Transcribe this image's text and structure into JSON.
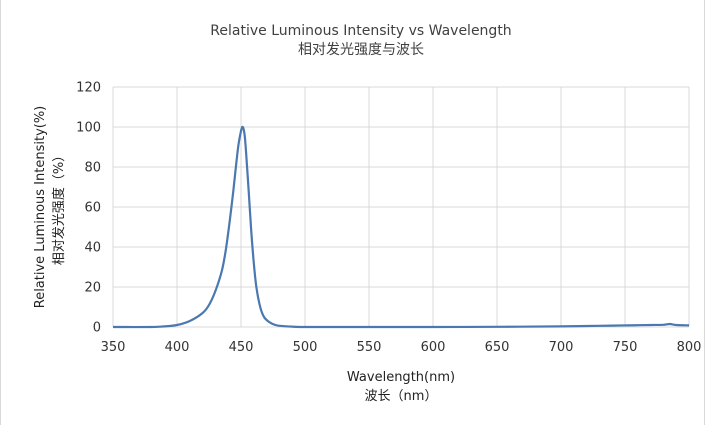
{
  "chart_data": {
    "type": "line",
    "title": "Relative Luminous Intensity vs Wavelength",
    "subtitle": "相对发光强度与波长",
    "xlabel": "Wavelength(nm)",
    "xlabel_cn": "波长（nm）",
    "ylabel": "Relative Luminous Intensity(%)",
    "ylabel_cn": "相对发光强度（%）",
    "xlim": [
      350,
      800
    ],
    "ylim": [
      0,
      120
    ],
    "xticks": [
      350,
      400,
      450,
      500,
      550,
      600,
      650,
      700,
      750,
      800
    ],
    "yticks": [
      0,
      20,
      40,
      60,
      80,
      100,
      120
    ],
    "grid": true,
    "line_color": "#4a78b0",
    "series": [
      {
        "x": [
          350,
          380,
          390,
          400,
          410,
          420,
          425,
          430,
          435,
          438,
          441,
          444,
          446,
          448,
          450,
          451,
          452,
          453,
          454,
          456,
          458,
          460,
          462,
          465,
          468,
          472,
          476,
          480,
          490,
          500,
          550,
          600,
          650,
          700,
          720,
          740,
          760,
          770,
          780,
          785,
          790,
          800
        ],
        "y": [
          0,
          0,
          0.3,
          1,
          3,
          7,
          11,
          18,
          28,
          38,
          52,
          68,
          80,
          91,
          98,
          100,
          99,
          95,
          87,
          68,
          48,
          32,
          20,
          10,
          5,
          2.5,
          1.2,
          0.6,
          0.2,
          0,
          0,
          0,
          0.1,
          0.3,
          0.5,
          0.7,
          0.9,
          1.0,
          1.1,
          1.5,
          1.0,
          0.8
        ]
      }
    ]
  }
}
